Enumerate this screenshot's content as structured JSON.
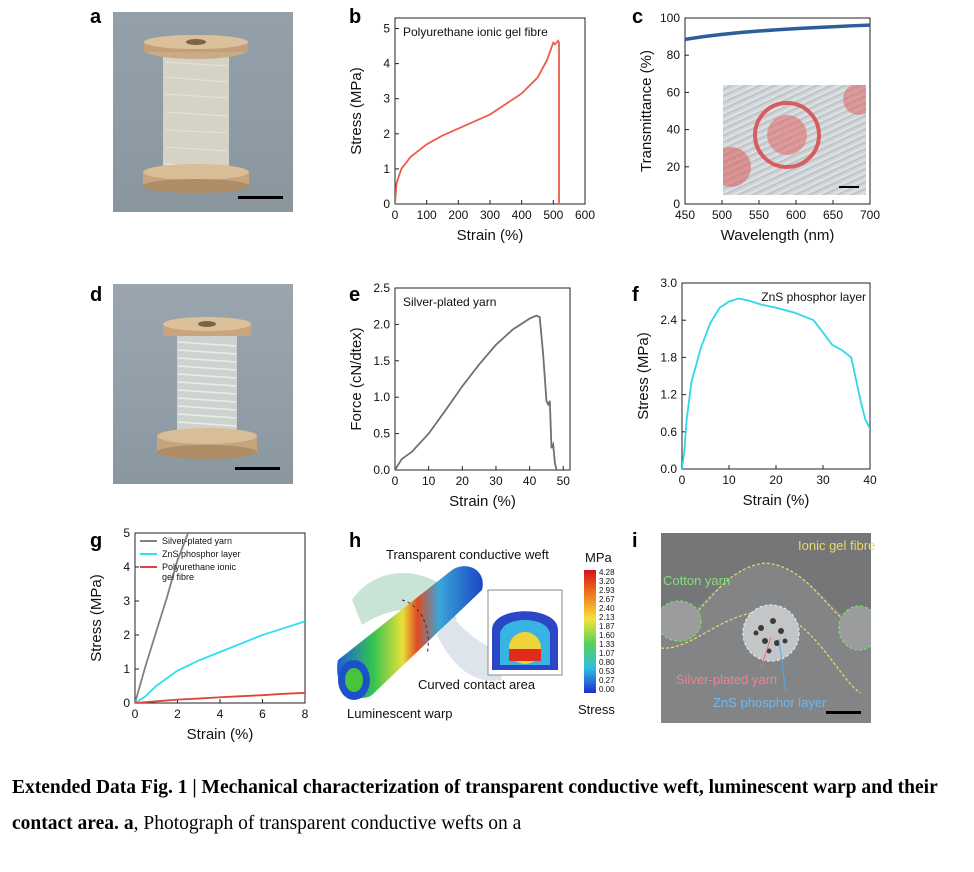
{
  "panels": {
    "a": "a",
    "b": "b",
    "c": "c",
    "d": "d",
    "e": "e",
    "f": "f",
    "g": "g",
    "h": "h",
    "i": "i"
  },
  "colors": {
    "b_line": "#ef5b4b",
    "c_line": "#2f5d9a",
    "e_line": "#707070",
    "f_line": "#2fd8e6",
    "g_silver": "#808080",
    "g_zns": "#2fe0ee",
    "g_pu": "#e0443c"
  },
  "chart_data": [
    {
      "id": "b",
      "type": "line",
      "title": "Polyurethane ionic gel fibre",
      "xlabel": "Strain (%)",
      "ylabel": "Stress (MPa)",
      "xlim": [
        0,
        600
      ],
      "ylim": [
        0,
        5.3
      ],
      "xticks": [
        0,
        100,
        200,
        300,
        400,
        500,
        600
      ],
      "yticks": [
        0,
        1,
        2,
        3,
        4,
        5
      ],
      "series": [
        {
          "x": [
            0,
            5,
            20,
            50,
            100,
            150,
            200,
            250,
            300,
            350,
            400,
            450,
            480,
            500,
            505,
            515,
            518,
            518
          ],
          "y": [
            0,
            0.6,
            1.0,
            1.35,
            1.7,
            1.95,
            2.15,
            2.35,
            2.55,
            2.85,
            3.15,
            3.6,
            4.1,
            4.6,
            4.55,
            4.65,
            4.6,
            0
          ]
        }
      ]
    },
    {
      "id": "c",
      "type": "line",
      "xlabel": "Wavelength (nm)",
      "ylabel": "Transmittance (%)",
      "xlim": [
        450,
        700
      ],
      "ylim": [
        0,
        100
      ],
      "xticks": [
        450,
        500,
        550,
        600,
        650,
        700
      ],
      "yticks": [
        0,
        20,
        40,
        60,
        80,
        100
      ],
      "series": [
        {
          "x": [
            450,
            475,
            500,
            525,
            550,
            575,
            600,
            625,
            650,
            675,
            700
          ],
          "y": [
            88.5,
            90,
            91.2,
            92.2,
            93.0,
            93.7,
            94.3,
            94.8,
            95.3,
            95.8,
            96.2
          ]
        }
      ]
    },
    {
      "id": "e",
      "type": "line",
      "title": "Silver-plated yarn",
      "xlabel": "Strain (%)",
      "ylabel": "Force (cN/dtex)",
      "xlim": [
        0,
        52
      ],
      "ylim": [
        0,
        2.5
      ],
      "xticks": [
        0,
        10,
        20,
        30,
        40,
        50
      ],
      "yticks": [
        0.0,
        0.5,
        1.0,
        1.5,
        2.0,
        2.5
      ],
      "series": [
        {
          "x": [
            0,
            2,
            5,
            10,
            15,
            20,
            25,
            30,
            35,
            40,
            42,
            43,
            44,
            45,
            45.5,
            46,
            46.5,
            47,
            47.5,
            48
          ],
          "y": [
            0,
            0.15,
            0.25,
            0.5,
            0.82,
            1.15,
            1.45,
            1.72,
            1.93,
            2.08,
            2.12,
            2.1,
            1.6,
            0.95,
            0.9,
            0.95,
            0.3,
            0.35,
            0.1,
            0
          ]
        }
      ]
    },
    {
      "id": "f",
      "type": "line",
      "title": "ZnS phosphor layer",
      "xlabel": "Strain (%)",
      "ylabel": "Stress (MPa)",
      "xlim": [
        0,
        40
      ],
      "ylim": [
        0,
        3.0
      ],
      "xticks": [
        0,
        10,
        20,
        30,
        40
      ],
      "yticks": [
        0.0,
        0.6,
        1.2,
        1.8,
        2.4,
        3.0
      ],
      "series": [
        {
          "x": [
            0,
            0.5,
            1,
            2,
            4,
            6,
            8,
            10,
            12,
            14,
            17,
            20,
            24,
            28,
            30,
            32,
            34,
            36,
            37,
            38,
            39,
            40
          ],
          "y": [
            0,
            0.3,
            0.8,
            1.4,
            1.95,
            2.35,
            2.6,
            2.7,
            2.75,
            2.72,
            2.65,
            2.6,
            2.52,
            2.4,
            2.2,
            2.0,
            1.92,
            1.8,
            1.45,
            1.1,
            0.8,
            0.65
          ]
        }
      ]
    },
    {
      "id": "g",
      "type": "line",
      "xlabel": "Strain (%)",
      "ylabel": "Stress (MPa)",
      "xlim": [
        0,
        8
      ],
      "ylim": [
        0,
        5
      ],
      "xticks": [
        0,
        2,
        4,
        6,
        8
      ],
      "yticks": [
        0,
        1,
        2,
        3,
        4,
        5
      ],
      "legend": "top-left",
      "series": [
        {
          "name": "Silver-plated yarn",
          "x": [
            0,
            0.5,
            1,
            1.5,
            2,
            2.5
          ],
          "y": [
            0,
            1.1,
            2.1,
            3.1,
            4.2,
            5.0
          ]
        },
        {
          "name": "ZnS phosphor layer",
          "x": [
            0,
            0.5,
            1,
            2,
            3,
            4,
            5,
            6,
            7,
            8
          ],
          "y": [
            0,
            0.2,
            0.5,
            0.95,
            1.25,
            1.5,
            1.75,
            2.0,
            2.2,
            2.4
          ]
        },
        {
          "name": "Polyurethane ionic gel fibre",
          "x": [
            0,
            1,
            2,
            3,
            4,
            5,
            6,
            7,
            8
          ],
          "y": [
            0,
            0.05,
            0.1,
            0.13,
            0.17,
            0.2,
            0.23,
            0.27,
            0.3
          ]
        }
      ]
    }
  ],
  "panel_h": {
    "label_weft": "Transparent conductive weft",
    "label_contact": "Curved contact area",
    "label_warp": "Luminescent warp",
    "colorbar_unit": "MPa",
    "colorbar_title": "Stress",
    "colorbar_values": [
      "4.28",
      "3.20",
      "2.93",
      "2.67",
      "2.40",
      "2.13",
      "1.87",
      "1.60",
      "1.33",
      "1.07",
      "0.80",
      "0.53",
      "0.27",
      "0.00"
    ]
  },
  "panel_i": {
    "label_ionic": "Ionic gel fibre",
    "label_cotton": "Cotton yarn",
    "label_silver": "Silver-plated yarn",
    "label_zns": "ZnS phosphor layer"
  },
  "caption": {
    "bold": "Extended Data Fig. 1 | Mechanical characterization of transparent conductive weft, luminescent warp and their contact area.",
    "letter": "a",
    "text": ", Photograph of transparent conductive wefts on a"
  }
}
